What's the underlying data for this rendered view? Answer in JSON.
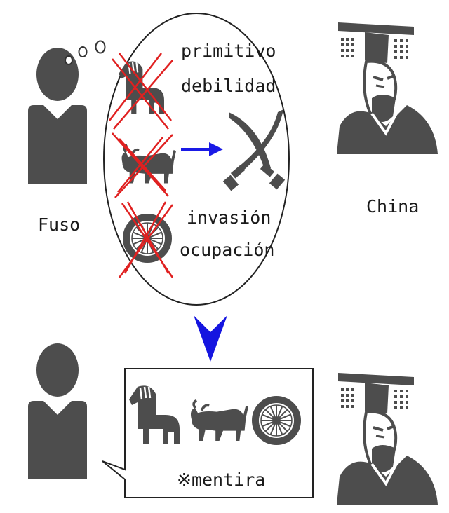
{
  "top": {
    "person_label": "Fuso",
    "emperor_label": "China",
    "thought_words": [
      "primitivo",
      "debilidad"
    ],
    "action_words": [
      "invasión",
      "ocupación"
    ]
  },
  "bottom": {
    "speech_note": "※mentira"
  },
  "colors": {
    "figure": "#4d4d4d",
    "cross": "#e02020",
    "arrow_right": "#1a1ae6",
    "arrow_down": "#1515e0"
  },
  "icons": [
    "person-icon",
    "thought-bubble",
    "horse-icon",
    "ox-icon",
    "wheel-icon",
    "crossed-swords-icon",
    "emperor-icon",
    "speech-bubble"
  ]
}
